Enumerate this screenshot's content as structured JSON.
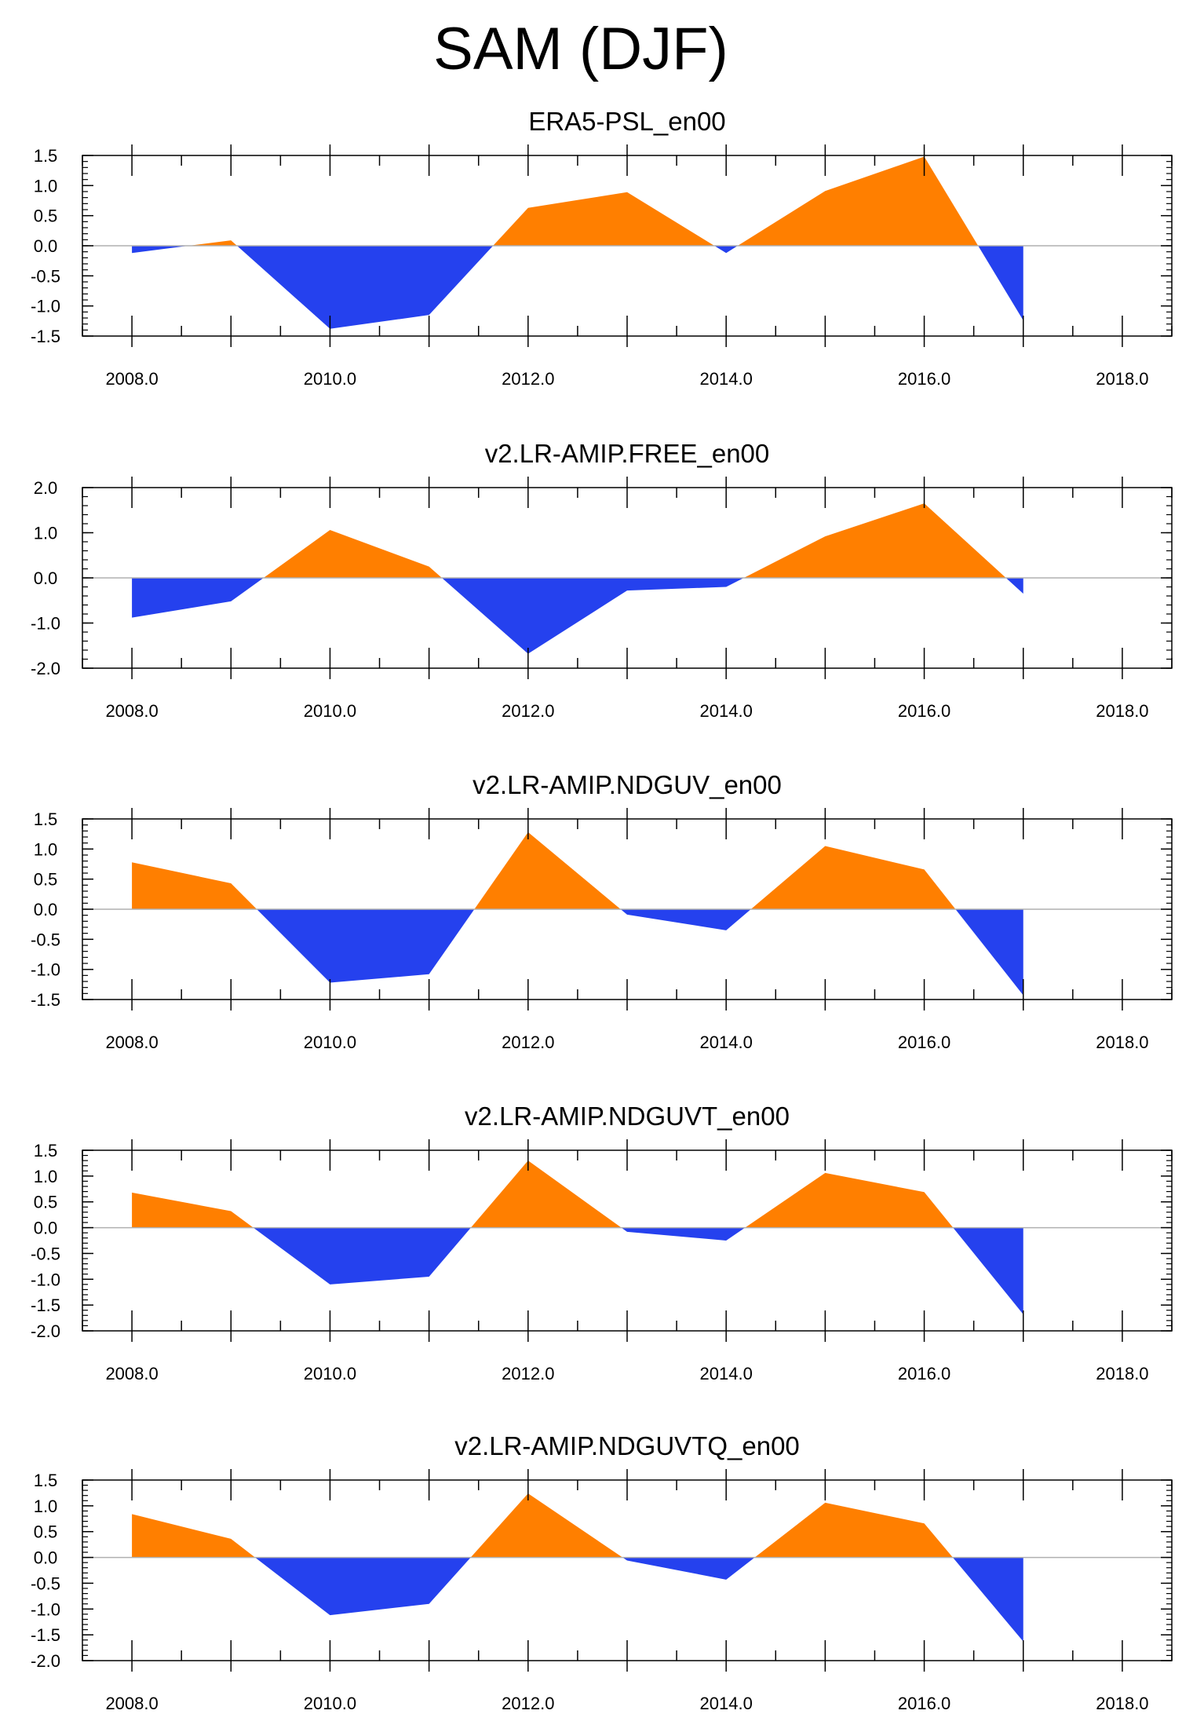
{
  "figure": {
    "title": "SAM (DJF)"
  },
  "colors": {
    "positive": "#ff7f00",
    "negative": "#2541ee",
    "frame": "#000000",
    "zero_line": "#b0b0b0"
  },
  "chart_data": [
    {
      "type": "area",
      "title": "ERA5-PSL_en00",
      "x": [
        2008,
        2009,
        2010,
        2011,
        2012,
        2013,
        2014,
        2015,
        2016,
        2017
      ],
      "values": [
        -0.12,
        0.09,
        -1.38,
        -1.15,
        0.63,
        0.89,
        -0.12,
        0.91,
        1.48,
        -1.24
      ],
      "xlim": [
        2007.5,
        2018.5
      ],
      "ylim": [
        -1.5,
        1.5
      ],
      "xticks": [
        2008,
        2010,
        2012,
        2014,
        2016,
        2018
      ],
      "xtick_labels": [
        "2008.0",
        "2010.0",
        "2012.0",
        "2014.0",
        "2016.0",
        "2018.0"
      ],
      "yticks": [
        1.5,
        1.0,
        0.5,
        0.0,
        -0.5,
        -1.0,
        -1.5
      ],
      "ytick_labels": [
        "1.5",
        "1.0",
        "0.5",
        "0.0",
        "-0.5",
        "-1.0",
        "-1.5"
      ],
      "minor_y_step": 0.1
    },
    {
      "type": "area",
      "title": "v2.LR-AMIP.FREE_en00",
      "x": [
        2008,
        2009,
        2010,
        2011,
        2012,
        2013,
        2014,
        2015,
        2016,
        2017
      ],
      "values": [
        -0.88,
        -0.52,
        1.06,
        0.25,
        -1.68,
        -0.28,
        -0.2,
        0.92,
        1.65,
        -0.35
      ],
      "xlim": [
        2007.5,
        2018.5
      ],
      "ylim": [
        -2.0,
        2.0
      ],
      "xticks": [
        2008,
        2010,
        2012,
        2014,
        2016,
        2018
      ],
      "xtick_labels": [
        "2008.0",
        "2010.0",
        "2012.0",
        "2014.0",
        "2016.0",
        "2018.0"
      ],
      "yticks": [
        2.0,
        1.0,
        0.0,
        -1.0,
        -2.0
      ],
      "ytick_labels": [
        "2.0",
        "1.0",
        "0.0",
        "-1.0",
        "-2.0"
      ],
      "minor_y_step": 0.2
    },
    {
      "type": "area",
      "title": "v2.LR-AMIP.NDGUV_en00",
      "x": [
        2008,
        2009,
        2010,
        2011,
        2012,
        2013,
        2014,
        2015,
        2016,
        2017
      ],
      "values": [
        0.78,
        0.43,
        -1.22,
        -1.08,
        1.28,
        -0.09,
        -0.35,
        1.05,
        0.66,
        -1.43
      ],
      "xlim": [
        2007.5,
        2018.5
      ],
      "ylim": [
        -1.5,
        1.5
      ],
      "xticks": [
        2008,
        2010,
        2012,
        2014,
        2016,
        2018
      ],
      "xtick_labels": [
        "2008.0",
        "2010.0",
        "2012.0",
        "2014.0",
        "2016.0",
        "2018.0"
      ],
      "yticks": [
        1.5,
        1.0,
        0.5,
        0.0,
        -0.5,
        -1.0,
        -1.5
      ],
      "ytick_labels": [
        "1.5",
        "1.0",
        "0.5",
        "0.0",
        "-0.5",
        "-1.0",
        "-1.5"
      ],
      "minor_y_step": 0.1
    },
    {
      "type": "area",
      "title": "v2.LR-AMIP.NDGUVT_en00",
      "x": [
        2008,
        2009,
        2010,
        2011,
        2012,
        2013,
        2014,
        2015,
        2016,
        2017
      ],
      "values": [
        0.68,
        0.32,
        -1.1,
        -0.95,
        1.3,
        -0.08,
        -0.25,
        1.06,
        0.69,
        -1.68
      ],
      "xlim": [
        2007.5,
        2018.5
      ],
      "ylim": [
        -2.0,
        1.5
      ],
      "xticks": [
        2008,
        2010,
        2012,
        2014,
        2016,
        2018
      ],
      "xtick_labels": [
        "2008.0",
        "2010.0",
        "2012.0",
        "2014.0",
        "2016.0",
        "2018.0"
      ],
      "yticks": [
        1.5,
        1.0,
        0.5,
        0.0,
        -0.5,
        -1.0,
        -1.5,
        -2.0
      ],
      "ytick_labels": [
        "1.5",
        "1.0",
        "0.5",
        "0.0",
        "-0.5",
        "-1.0",
        "-1.5",
        "-2.0"
      ],
      "minor_y_step": 0.1
    },
    {
      "type": "area",
      "title": "v2.LR-AMIP.NDGUVTQ_en00",
      "x": [
        2008,
        2009,
        2010,
        2011,
        2012,
        2013,
        2014,
        2015,
        2016,
        2017
      ],
      "values": [
        0.84,
        0.36,
        -1.12,
        -0.9,
        1.24,
        -0.06,
        -0.43,
        1.06,
        0.66,
        -1.63
      ],
      "xlim": [
        2007.5,
        2018.5
      ],
      "ylim": [
        -2.0,
        1.5
      ],
      "xticks": [
        2008,
        2010,
        2012,
        2014,
        2016,
        2018
      ],
      "xtick_labels": [
        "2008.0",
        "2010.0",
        "2012.0",
        "2014.0",
        "2016.0",
        "2018.0"
      ],
      "yticks": [
        1.5,
        1.0,
        0.5,
        0.0,
        -0.5,
        -1.0,
        -1.5,
        -2.0
      ],
      "ytick_labels": [
        "1.5",
        "1.0",
        "0.5",
        "0.0",
        "-0.5",
        "-1.0",
        "-1.5",
        "-2.0"
      ],
      "minor_y_step": 0.1
    }
  ]
}
